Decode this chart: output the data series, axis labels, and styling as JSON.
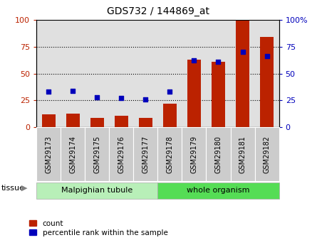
{
  "title": "GDS732 / 144869_at",
  "categories": [
    "GSM29173",
    "GSM29174",
    "GSM29175",
    "GSM29176",
    "GSM29177",
    "GSM29178",
    "GSM29179",
    "GSM29180",
    "GSM29181",
    "GSM29182"
  ],
  "count_values": [
    12,
    13,
    9,
    11,
    9,
    22,
    63,
    61,
    100,
    84
  ],
  "percentile_values": [
    33,
    34,
    28,
    27,
    26,
    33,
    62,
    61,
    70,
    66
  ],
  "tissue_groups": [
    {
      "label": "Malpighian tubule",
      "start": 0,
      "end": 5
    },
    {
      "label": "whole organism",
      "start": 5,
      "end": 10
    }
  ],
  "tissue_colors": [
    "#b8efb8",
    "#55dd55"
  ],
  "bar_color": "#bb2200",
  "dot_color": "#0000bb",
  "ylim": [
    0,
    100
  ],
  "y_ticks": [
    0,
    25,
    50,
    75,
    100
  ],
  "plot_bg_color": "#e0e0e0",
  "tick_label_bg": "#cccccc",
  "tissue_label": "tissue",
  "legend_count_label": "count",
  "legend_pct_label": "percentile rank within the sample"
}
